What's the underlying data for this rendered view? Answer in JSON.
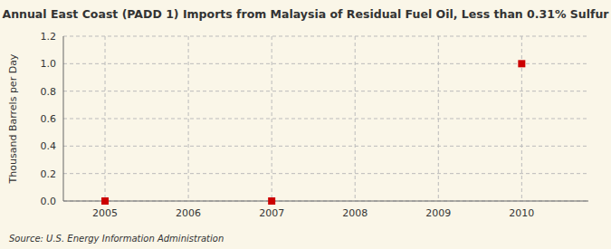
{
  "chart_data": {
    "type": "scatter",
    "title": "Annual East Coast (PADD 1) Imports from Malaysia of Residual Fuel Oil, Less than 0.31% Sulfur",
    "ylabel": "Thousand Barrels per Day",
    "annotations": [
      "Source: U.S. Energy Information Administration"
    ],
    "x": [
      2005,
      2007,
      2010
    ],
    "values": [
      0.0,
      0.0,
      1.0
    ],
    "color": "#cc0000",
    "marker": "square",
    "xlim": [
      2004.5,
      2010.8
    ],
    "ylim": [
      0,
      1.2
    ],
    "xticks": [
      2005,
      2006,
      2007,
      2008,
      2009,
      2010
    ],
    "yticks": [
      {
        "value": 0.0,
        "label": "0.0"
      },
      {
        "value": 0.2,
        "label": "0.2"
      },
      {
        "value": 0.4,
        "label": "0.4"
      },
      {
        "value": 0.6,
        "label": "0.6"
      },
      {
        "value": 0.8,
        "label": "0.8"
      },
      {
        "value": 1.0,
        "label": "1.0"
      },
      {
        "value": 1.2,
        "label": "1.2"
      }
    ],
    "grid": true
  }
}
